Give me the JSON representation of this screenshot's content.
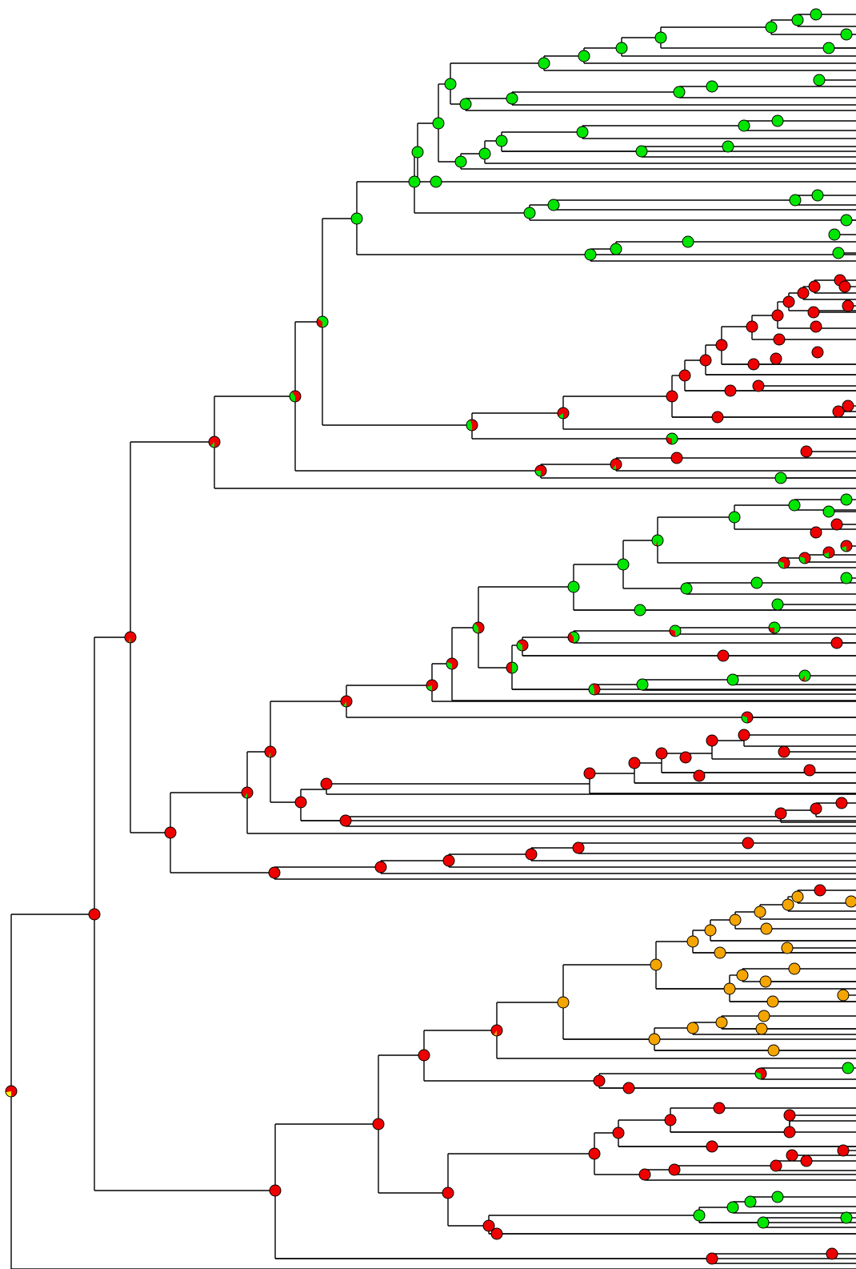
{
  "figure": {
    "type": "phylogenetic-tree",
    "description_visible_text": "",
    "node_glyph": "pie-chart-of-state-probabilities",
    "states": {
      "red": "#ee0000",
      "green": "#00e600",
      "orange": "#f5a500",
      "yellow": "#ffff00"
    },
    "branch_color": "#000000",
    "background": "#ffffff"
  }
}
